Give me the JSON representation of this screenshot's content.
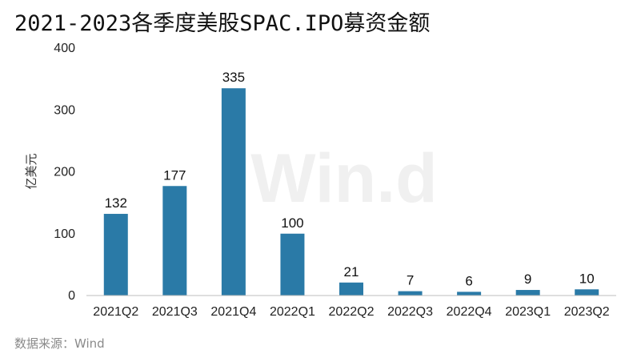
{
  "chart_data": {
    "type": "bar",
    "title": "2021-2023各季度美股SPAC.IPO募资金额",
    "ylabel": "亿美元",
    "xlabel": "",
    "categories": [
      "2021Q2",
      "2021Q3",
      "2021Q4",
      "2022Q1",
      "2022Q2",
      "2022Q3",
      "2022Q4",
      "2023Q1",
      "2023Q2"
    ],
    "values": [
      132,
      177,
      335,
      100,
      21,
      7,
      6,
      9,
      10
    ],
    "ylim": [
      0,
      400
    ],
    "yticks": [
      0,
      100,
      200,
      300,
      400
    ],
    "grid": false,
    "data_labels": true,
    "bar_color": "#2A7AA7"
  },
  "source": "数据来源：Wind",
  "watermark": "Win.d"
}
